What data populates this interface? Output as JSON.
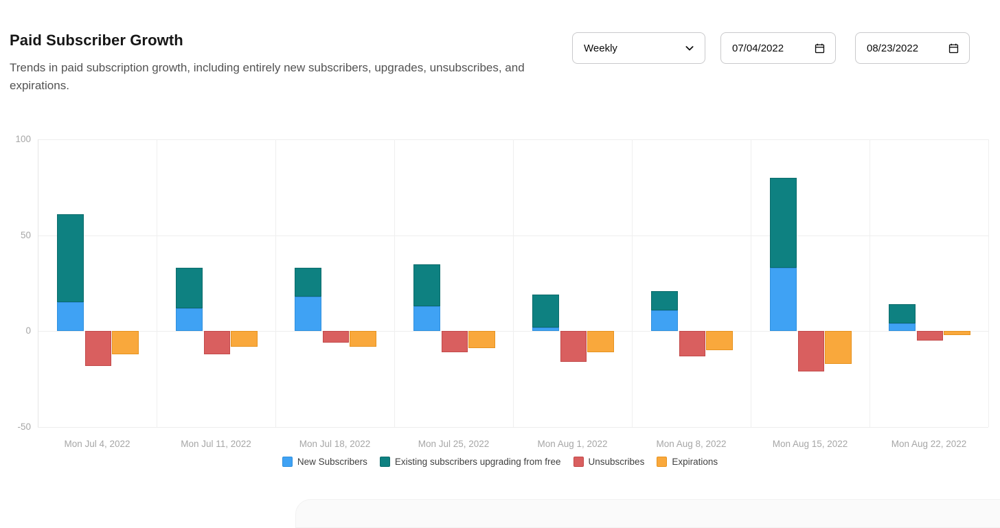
{
  "header": {
    "title": "Paid Subscriber Growth",
    "subtitle": "Trends in paid subscription growth, including entirely new subscribers, upgrades, unsubscribes, and expirations."
  },
  "controls": {
    "frequency": {
      "value": "Weekly",
      "icon": "chevron-down"
    },
    "start_date": {
      "value": "07/04/2022",
      "icon": "calendar"
    },
    "end_date": {
      "value": "08/23/2022",
      "icon": "calendar"
    }
  },
  "chart_data": {
    "type": "bar",
    "title": "Paid Subscriber Growth",
    "categories": [
      "Mon Jul 4, 2022",
      "Mon Jul 11, 2022",
      "Mon Jul 18, 2022",
      "Mon Jul 25, 2022",
      "Mon Aug 1, 2022",
      "Mon Aug 8, 2022",
      "Mon Aug 15, 2022",
      "Mon Aug 22, 2022"
    ],
    "series": [
      {
        "name": "New Subscribers",
        "stack": "positive",
        "color": "#3FA2F4",
        "border": "#2f8fdd",
        "values": [
          15,
          12,
          18,
          13,
          2,
          11,
          33,
          4
        ]
      },
      {
        "name": "Existing subscribers upgrading from free",
        "stack": "positive",
        "color": "#0E8181",
        "border": "#0b6b6b",
        "values": [
          46,
          21,
          15,
          22,
          17,
          10,
          47,
          10
        ]
      },
      {
        "name": "Unsubscribes",
        "stack": "negative-1",
        "color": "#D95F5F",
        "border": "#c24848",
        "values": [
          -18,
          -12,
          -6,
          -11,
          -16,
          -13,
          -21,
          -5
        ]
      },
      {
        "name": "Expirations",
        "stack": "negative-2",
        "color": "#F9A83C",
        "border": "#e6921e",
        "values": [
          -12,
          -8,
          -8,
          -9,
          -11,
          -10,
          -17,
          -2
        ]
      }
    ],
    "ylim": [
      -50,
      100
    ],
    "yticks": [
      100,
      50,
      0,
      -50
    ],
    "grid": true,
    "legend_position": "bottom"
  }
}
